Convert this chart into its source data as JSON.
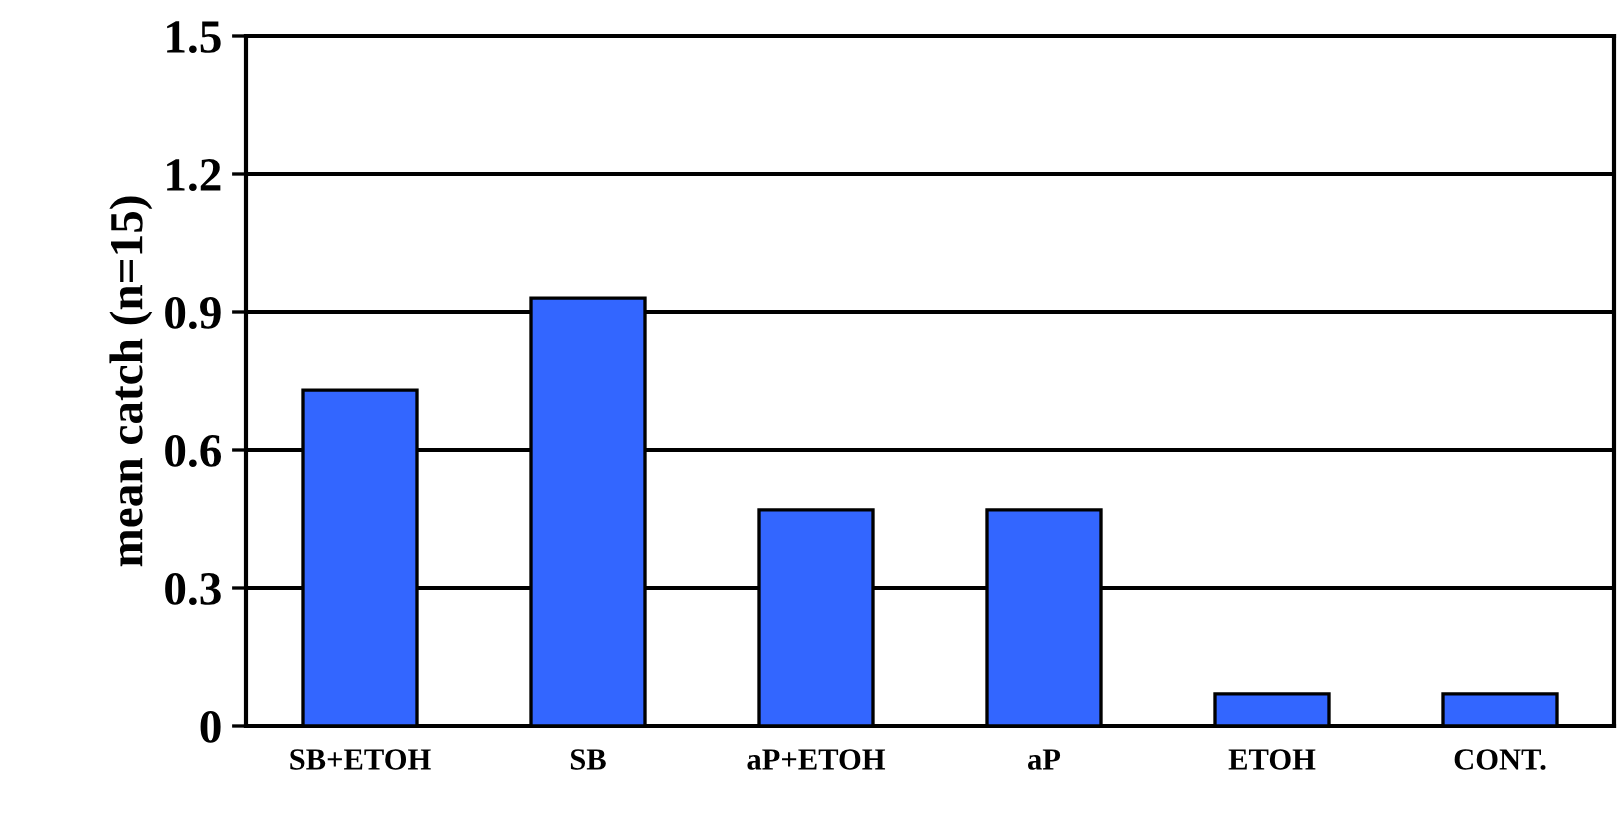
{
  "chart_data": {
    "type": "bar",
    "ylabel": "mean catch (n=15)",
    "categories": [
      "SB+ETOH",
      "SB",
      "aP+ETOH",
      "aP",
      "ETOH",
      "CONT."
    ],
    "values": [
      0.73,
      0.93,
      0.47,
      0.47,
      0.07,
      0.07
    ],
    "color": "#3366ff",
    "ylim": [
      0,
      1.5
    ],
    "yticks": [
      {
        "value": 0,
        "label": "0"
      },
      0.3,
      0.6,
      0.9,
      1.2,
      1.5
    ],
    "grid": "y"
  }
}
